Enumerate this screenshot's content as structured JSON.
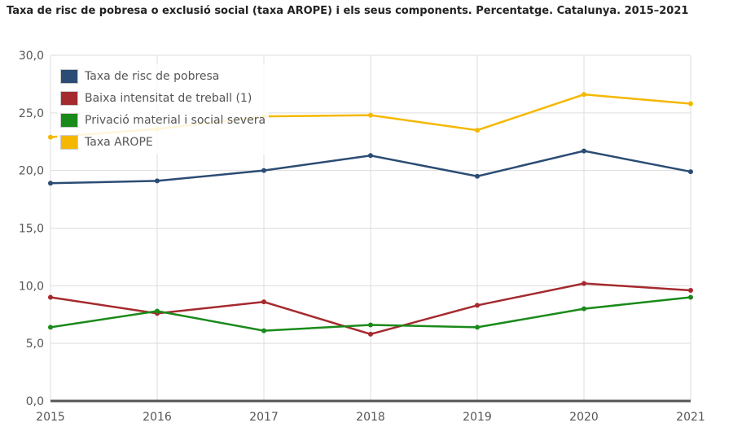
{
  "title": "Taxa de risc de pobresa o exclusió social (taxa AROPE) i els seus components. Percentatge. Catalunya. 2015–2021",
  "chart_data": {
    "type": "line",
    "title": "Taxa de risc de pobresa o exclusió social (taxa AROPE) i els seus components. Percentatge. Catalunya. 2015–2021",
    "categories": [
      "2015",
      "2016",
      "2017",
      "2018",
      "2019",
      "2020",
      "2021"
    ],
    "ylim": [
      0,
      30
    ],
    "yticks": [
      "0,0",
      "5,0",
      "10,0",
      "15,0",
      "20,0",
      "25,0",
      "30,0"
    ],
    "grid": true,
    "legend": "top-left",
    "series": [
      {
        "name": "Taxa de risc de pobresa",
        "color": "#2b4c74",
        "values": [
          18.9,
          19.1,
          20.0,
          21.3,
          19.5,
          21.7,
          19.9
        ]
      },
      {
        "name": "Baixa intensitat de treball (1)",
        "color": "#a52a2e",
        "values": [
          9.0,
          7.6,
          8.6,
          5.8,
          8.3,
          10.2,
          9.6
        ]
      },
      {
        "name": "Privació material i social severa",
        "color": "#1a8a1a",
        "values": [
          6.4,
          7.8,
          6.1,
          6.6,
          6.4,
          8.0,
          9.0
        ]
      },
      {
        "name": "Taxa AROPE",
        "color": "#f5b800",
        "values": [
          22.9,
          23.6,
          24.7,
          24.8,
          23.5,
          26.6,
          25.8
        ]
      }
    ]
  }
}
